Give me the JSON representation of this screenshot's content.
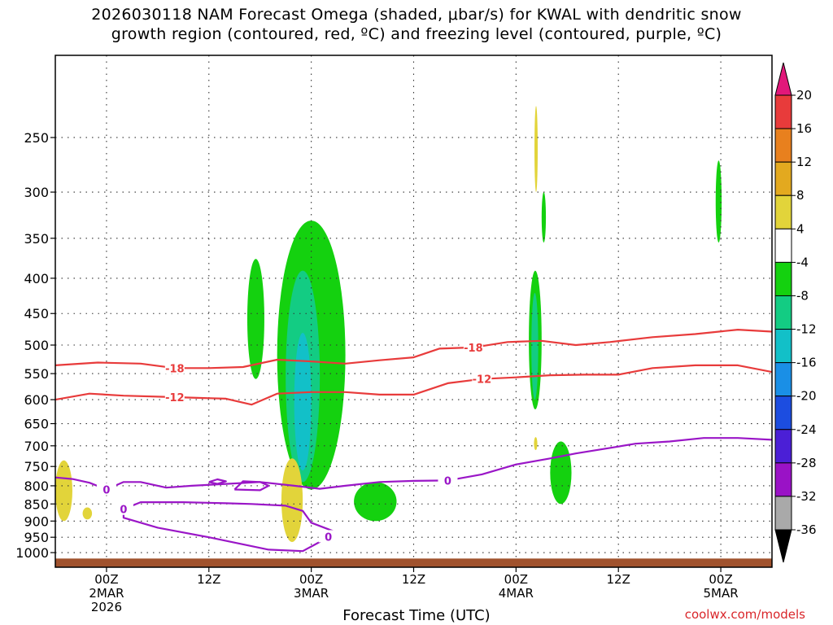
{
  "title": {
    "line1": "2026030118 NAM Forecast Omega (shaded, μbar/s) for KWAL with dendritic snow",
    "line2": "growth region (contoured, red, ºC) and freezing level (contoured, purple, ºC)"
  },
  "xlabel": "Forecast Time (UTC)",
  "credit": "coolwx.com/models",
  "chart_data": {
    "type": "heatmap",
    "title": "2026030118 NAM Forecast Omega (shaded, μbar/s) for KWAL with dendritic snow growth region (contoured, red, ºC) and freezing level (contoured, purple, ºC)",
    "xlabel": "Forecast Time (UTC)",
    "ylabel": "",
    "y_axis": {
      "scale": "log",
      "reversed": true,
      "range_hPa": [
        1050,
        190
      ],
      "ticks": [
        250,
        300,
        350,
        400,
        450,
        500,
        550,
        600,
        650,
        700,
        750,
        800,
        850,
        900,
        950,
        1000
      ]
    },
    "x_axis": {
      "range_hours_from_start": [
        0,
        84
      ],
      "ticks": [
        {
          "hour": 6,
          "lines": [
            "00Z",
            "2MAR",
            "2026"
          ]
        },
        {
          "hour": 18,
          "lines": [
            "12Z"
          ]
        },
        {
          "hour": 30,
          "lines": [
            "00Z",
            "3MAR"
          ]
        },
        {
          "hour": 42,
          "lines": [
            "12Z"
          ]
        },
        {
          "hour": 54,
          "lines": [
            "00Z",
            "4MAR"
          ]
        },
        {
          "hour": 66,
          "lines": [
            "12Z"
          ]
        },
        {
          "hour": 78,
          "lines": [
            "00Z",
            "5MAR"
          ]
        }
      ]
    },
    "grid": true,
    "colorbar": {
      "units": "μbar/s",
      "labels": [
        "20",
        "16",
        "12",
        "8",
        "4",
        "-4",
        "-8",
        "-12",
        "-16",
        "-20",
        "-24",
        "-28",
        "-32",
        "-36"
      ],
      "bins": [
        {
          "from": 16,
          "to": 20,
          "color": "#e83b3b"
        },
        {
          "from": 12,
          "to": 16,
          "color": "#e8801e"
        },
        {
          "from": 8,
          "to": 12,
          "color": "#e3a91f"
        },
        {
          "from": 4,
          "to": 8,
          "color": "#e2d43a"
        },
        {
          "from": -4,
          "to": 4,
          "color": "#ffffff"
        },
        {
          "from": -8,
          "to": -4,
          "color": "#14d10f"
        },
        {
          "from": -12,
          "to": -8,
          "color": "#13cc83"
        },
        {
          "from": -16,
          "to": -12,
          "color": "#12c0c8"
        },
        {
          "from": -20,
          "to": -16,
          "color": "#1a8fe6"
        },
        {
          "from": -24,
          "to": -20,
          "color": "#1c4de0"
        },
        {
          "from": -28,
          "to": -24,
          "color": "#4b1fd6"
        },
        {
          "from": -32,
          "to": -28,
          "color": "#9a12c6"
        },
        {
          "from": -36,
          "to": -32,
          "color": "#a9a9a9"
        }
      ],
      "over_color": "#e2177a",
      "under_color": "#000000"
    },
    "contours": [
      {
        "label": "-18",
        "color": "#e83b3b",
        "points": [
          [
            0,
            535
          ],
          [
            5,
            530
          ],
          [
            10,
            532
          ],
          [
            14,
            540
          ],
          [
            18,
            540
          ],
          [
            22,
            538
          ],
          [
            26,
            525
          ],
          [
            30,
            528
          ],
          [
            34,
            532
          ],
          [
            38,
            526
          ],
          [
            42,
            521
          ],
          [
            45,
            506
          ],
          [
            49,
            504
          ],
          [
            53,
            495
          ],
          [
            57,
            493
          ],
          [
            61,
            500
          ],
          [
            65,
            495
          ],
          [
            70,
            487
          ],
          [
            75,
            482
          ],
          [
            80,
            475
          ],
          [
            84,
            478
          ]
        ]
      },
      {
        "label": "-12",
        "color": "#e83b3b",
        "points": [
          [
            0,
            600
          ],
          [
            4,
            588
          ],
          [
            8,
            592
          ],
          [
            14,
            595
          ],
          [
            20,
            598
          ],
          [
            23,
            610
          ],
          [
            26,
            588
          ],
          [
            30,
            585
          ],
          [
            34,
            585
          ],
          [
            38,
            590
          ],
          [
            42,
            590
          ],
          [
            46,
            568
          ],
          [
            50,
            560
          ],
          [
            54,
            557
          ],
          [
            58,
            553
          ],
          [
            62,
            552
          ],
          [
            66,
            552
          ],
          [
            70,
            540
          ],
          [
            75,
            535
          ],
          [
            80,
            535
          ],
          [
            84,
            547
          ]
        ]
      },
      {
        "label": "0",
        "color": "#9a16c7",
        "points": [
          [
            0,
            778
          ],
          [
            2,
            782
          ],
          [
            4,
            792
          ],
          [
            6,
            810
          ],
          [
            8,
            790
          ],
          [
            10,
            790
          ],
          [
            13,
            805
          ],
          [
            16,
            800
          ],
          [
            20,
            795
          ],
          [
            24,
            790
          ],
          [
            28,
            800
          ],
          [
            31,
            808
          ],
          [
            34,
            800
          ],
          [
            38,
            790
          ],
          [
            42,
            787
          ],
          [
            46,
            786
          ],
          [
            50,
            770
          ],
          [
            54,
            745
          ],
          [
            58,
            730
          ],
          [
            61,
            718
          ],
          [
            65,
            705
          ],
          [
            68,
            695
          ],
          [
            72,
            690
          ],
          [
            76,
            682
          ],
          [
            80,
            682
          ],
          [
            84,
            686
          ]
        ]
      },
      {
        "label": "0",
        "color": "#9a16c7",
        "points": [
          [
            15,
            845
          ],
          [
            10,
            845
          ],
          [
            8,
            865
          ],
          [
            8,
            890
          ],
          [
            12,
            920
          ],
          [
            18,
            950
          ],
          [
            25,
            990
          ],
          [
            29,
            995
          ],
          [
            31,
            965
          ],
          [
            32,
            948
          ],
          [
            33,
            935
          ],
          [
            30,
            905
          ],
          [
            29,
            870
          ],
          [
            27,
            855
          ],
          [
            23,
            850
          ],
          [
            20,
            848
          ],
          [
            15,
            845
          ]
        ]
      },
      {
        "label": "",
        "color": "#9a16c7",
        "points": [
          [
            18,
            790
          ],
          [
            19,
            783
          ],
          [
            20,
            788
          ],
          [
            19,
            795
          ],
          [
            18,
            790
          ]
        ]
      },
      {
        "label": "",
        "color": "#9a16c7",
        "points": [
          [
            21,
            810
          ],
          [
            22,
            788
          ],
          [
            24,
            790
          ],
          [
            25,
            800
          ],
          [
            24,
            812
          ],
          [
            21,
            810
          ]
        ]
      }
    ],
    "shaded_regions": [
      {
        "value_bin": "-8..-4",
        "color": "#14d10f",
        "hours": [
          22.5,
          24.5
        ],
        "pressure_hPa": [
          375,
          560
        ]
      },
      {
        "value_bin": "-8..-4",
        "color": "#14d10f",
        "hours": [
          26,
          34
        ],
        "pressure_hPa": [
          330,
          810
        ]
      },
      {
        "value_bin": "-12..-8",
        "color": "#13cc83",
        "hours": [
          27,
          31
        ],
        "pressure_hPa": [
          390,
          790
        ]
      },
      {
        "value_bin": "-16..-12",
        "color": "#12c0c8",
        "hours": [
          28,
          30
        ],
        "pressure_hPa": [
          480,
          760
        ]
      },
      {
        "value_bin": "-8..-4",
        "color": "#14d10f",
        "hours": [
          55.5,
          57
        ],
        "pressure_hPa": [
          390,
          620
        ]
      },
      {
        "value_bin": "-12..-8",
        "color": "#13cc83",
        "hours": [
          55.8,
          56.6
        ],
        "pressure_hPa": [
          420,
          600
        ]
      },
      {
        "value_bin": "-8..-4",
        "color": "#14d10f",
        "hours": [
          57,
          57.5
        ],
        "pressure_hPa": [
          300,
          355
        ]
      },
      {
        "value_bin": "-8..-4",
        "color": "#14d10f",
        "hours": [
          77.4,
          78.1
        ],
        "pressure_hPa": [
          270,
          355
        ]
      },
      {
        "value_bin": "-8..-4",
        "color": "#14d10f",
        "hours": [
          58,
          60.5
        ],
        "pressure_hPa": [
          690,
          850
        ]
      },
      {
        "value_bin": "-8..-4",
        "color": "#14d10f",
        "hours": [
          35,
          40
        ],
        "pressure_hPa": [
          790,
          900
        ]
      },
      {
        "value_bin": "4..8",
        "color": "#e2d43a",
        "hours": [
          0,
          2
        ],
        "pressure_hPa": [
          735,
          900
        ]
      },
      {
        "value_bin": "4..8",
        "color": "#e2d43a",
        "hours": [
          3.2,
          4.3
        ],
        "pressure_hPa": [
          860,
          895
        ]
      },
      {
        "value_bin": "4..8",
        "color": "#e2d43a",
        "hours": [
          26.5,
          29
        ],
        "pressure_hPa": [
          730,
          965
        ]
      },
      {
        "value_bin": "4..8",
        "color": "#e2d43a",
        "hours": [
          56.2,
          56.5
        ],
        "pressure_hPa": [
          225,
          300
        ]
      },
      {
        "value_bin": "4..8",
        "color": "#e2d43a",
        "hours": [
          56.1,
          56.5
        ],
        "pressure_hPa": [
          680,
          710
        ]
      }
    ],
    "ground_color": "#a0522d"
  }
}
